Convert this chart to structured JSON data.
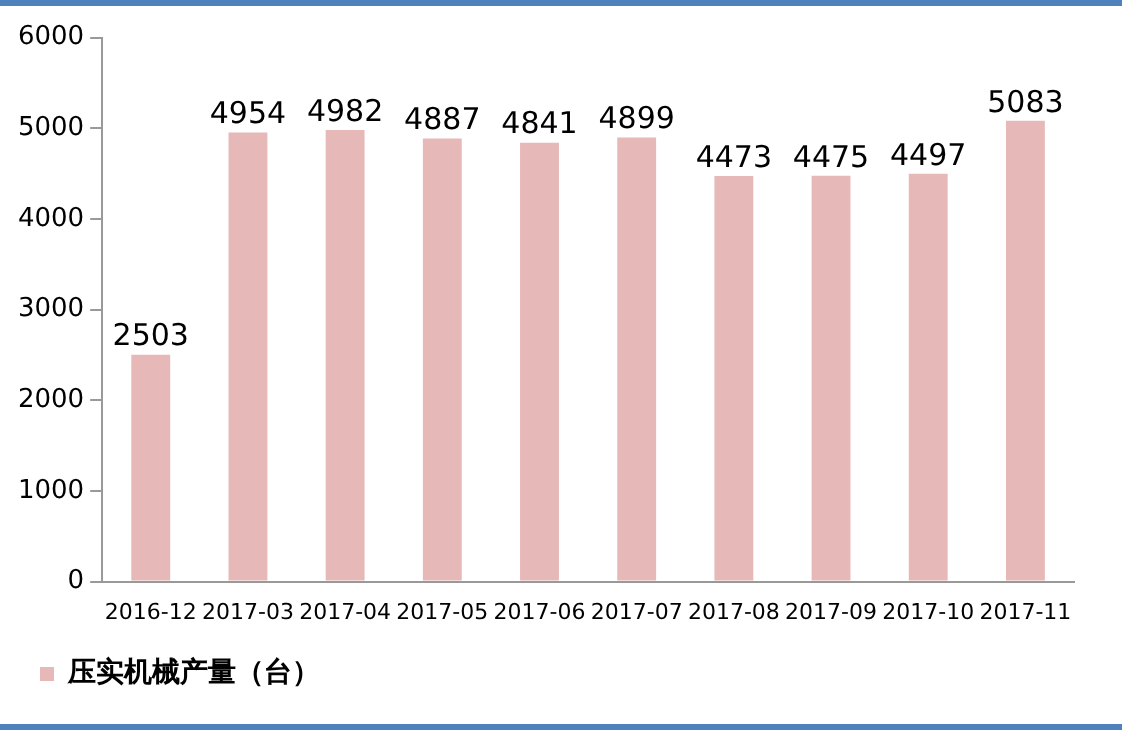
{
  "chart_data": {
    "type": "bar",
    "categories": [
      "2016-12",
      "2017-03",
      "2017-04",
      "2017-05",
      "2017-06",
      "2017-07",
      "2017-08",
      "2017-09",
      "2017-10",
      "2017-11"
    ],
    "series": [
      {
        "name": "压实机械产量（台）",
        "color": "#e6b9b8",
        "values": [
          2503,
          4954,
          4982,
          4887,
          4841,
          4899,
          4473,
          4475,
          4497,
          5083
        ]
      }
    ],
    "ylim": [
      0,
      6000
    ],
    "yticks": [
      0,
      1000,
      2000,
      3000,
      4000,
      5000,
      6000
    ],
    "grid": false,
    "legend": "bottom left",
    "data_labels": true
  }
}
